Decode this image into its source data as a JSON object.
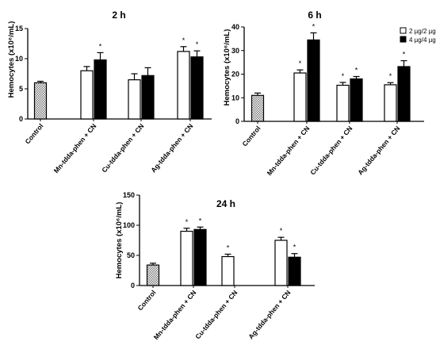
{
  "figure": {
    "colors": {
      "open_fill": "#ffffff",
      "solid_fill": "#000000",
      "control_hatch": "#7a7a7a",
      "axis": "#000000"
    },
    "legend": {
      "placement": "top-right of 6 h panel",
      "entries": [
        {
          "label": "2 µg/2 µg",
          "style": "open"
        },
        {
          "label": "4 µg/4 µg",
          "style": "solid"
        }
      ]
    }
  },
  "chart_data": [
    {
      "type": "bar",
      "title": "2 h",
      "ylabel": "Hemocytes (x10⁶/mL)",
      "ylim": [
        0,
        15
      ],
      "yticks": [
        0,
        5,
        10,
        15
      ],
      "categories": [
        "Control",
        "Mn-tdda-phen + CN",
        "Cu-tdda-phen + CN",
        "Ag-tdda-phen + CN"
      ],
      "series": [
        {
          "style": "control",
          "values": [
            6.0,
            null,
            null,
            null
          ],
          "errors": [
            0.25,
            null,
            null,
            null
          ]
        },
        {
          "style": "open",
          "values": [
            null,
            8.0,
            6.5,
            11.2
          ],
          "errors": [
            null,
            0.7,
            1.0,
            0.8
          ]
        },
        {
          "style": "solid",
          "values": [
            null,
            9.8,
            7.2,
            10.3
          ],
          "errors": [
            null,
            1.2,
            1.3,
            1.0
          ]
        }
      ],
      "significance": [
        {
          "series": 2,
          "category": 1
        },
        {
          "series": 1,
          "category": 3
        },
        {
          "series": 2,
          "category": 3
        }
      ],
      "significance_mark": "*"
    },
    {
      "type": "bar",
      "title": "6 h",
      "ylabel": "Hemocytes (x10⁶/mL)",
      "ylim": [
        0,
        40
      ],
      "yticks": [
        0,
        10,
        20,
        30,
        40
      ],
      "categories": [
        "Control",
        "Mn-tdda-phen + CN",
        "Cu-tdda-phen + CN",
        "Ag-tdda-phen + CN"
      ],
      "series": [
        {
          "style": "control",
          "values": [
            11.0,
            null,
            null,
            null
          ],
          "errors": [
            1.0,
            null,
            null,
            null
          ]
        },
        {
          "style": "open",
          "values": [
            null,
            20.5,
            15.3,
            15.5
          ],
          "errors": [
            null,
            1.3,
            1.2,
            0.9
          ]
        },
        {
          "style": "solid",
          "values": [
            null,
            34.5,
            18.0,
            23.2
          ],
          "errors": [
            null,
            3.0,
            1.0,
            2.5
          ]
        }
      ],
      "significance": [
        {
          "series": 1,
          "category": 1
        },
        {
          "series": 2,
          "category": 1
        },
        {
          "series": 1,
          "category": 2
        },
        {
          "series": 2,
          "category": 2
        },
        {
          "series": 1,
          "category": 3
        },
        {
          "series": 2,
          "category": 3
        }
      ],
      "significance_mark": "*"
    },
    {
      "type": "bar",
      "title": "24 h",
      "ylabel": "Hemocytes (x10⁶/mL)",
      "ylim": [
        0,
        150
      ],
      "yticks": [
        0,
        50,
        100,
        150
      ],
      "categories": [
        "Control",
        "Mn-tdda-phen + CN",
        "Cu-tdda-phen + CN",
        "Ag-tdda-phen + CN"
      ],
      "series": [
        {
          "style": "control",
          "values": [
            34.0,
            null,
            null,
            null
          ],
          "errors": [
            3.0,
            null,
            null,
            null
          ]
        },
        {
          "style": "open",
          "values": [
            null,
            90.0,
            48.0,
            75.0
          ],
          "errors": [
            null,
            5.0,
            4.0,
            5.0
          ]
        },
        {
          "style": "solid",
          "values": [
            null,
            93.0,
            null,
            47.0
          ],
          "errors": [
            null,
            4.0,
            null,
            6.0
          ]
        }
      ],
      "significance": [
        {
          "series": 1,
          "category": 1
        },
        {
          "series": 2,
          "category": 1
        },
        {
          "series": 1,
          "category": 2
        },
        {
          "series": 1,
          "category": 3
        },
        {
          "series": 2,
          "category": 3
        }
      ],
      "significance_mark": "*"
    }
  ]
}
